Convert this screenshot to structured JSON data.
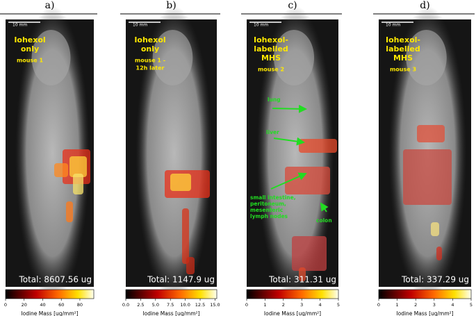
{
  "panels": [
    {
      "letter": "a)",
      "scale": "10 mm",
      "title_lines": [
        "Iohexol",
        "only"
      ],
      "subtitle_lines": [
        "mouse 1"
      ],
      "total": "Total: 8607.56 ug",
      "colorbar": {
        "label": "Iodine Mass [ug/mm²]",
        "lim": [
          0,
          95
        ],
        "ticks": [
          0,
          20,
          40,
          60,
          80
        ]
      }
    },
    {
      "letter": "b)",
      "scale": "10 mm",
      "title_lines": [
        "Iohexol",
        "only"
      ],
      "subtitle_lines": [
        "mouse 1 -",
        "12h later"
      ],
      "total": "Total: 1147.9 ug",
      "colorbar": {
        "label": "Iodine Mass [ug/mm²]",
        "lim": [
          0,
          15.3
        ],
        "ticks": [
          {
            "value": 0,
            "label": "0.0"
          },
          2.5,
          {
            "value": 5,
            "label": "5.0"
          },
          7.5,
          {
            "value": 10,
            "label": "10.0"
          },
          12.5,
          {
            "value": 15,
            "label": "15.0"
          }
        ]
      }
    },
    {
      "letter": "c)",
      "scale": "10 mm",
      "title_lines": [
        "Iohexol-",
        "labelled",
        "MHS"
      ],
      "subtitle_lines": [
        "mouse 2"
      ],
      "total": "Total: 311.31 ug",
      "colorbar": {
        "label": "Iodine Mass [ug/mm²]",
        "lim": [
          0,
          5
        ],
        "ticks": [
          0,
          1,
          2,
          3,
          4,
          5
        ]
      },
      "annotations": [
        {
          "lines": [
            "lung"
          ]
        },
        {
          "lines": [
            "liver"
          ]
        },
        {
          "lines": [
            "small intestine,",
            "peritoneum,",
            "mesenteric",
            "lymph nodes"
          ]
        },
        {
          "lines": [
            "colon"
          ]
        }
      ]
    },
    {
      "letter": "d)",
      "scale": "10 mm",
      "title_lines": [
        "Iohexol-",
        "labelled",
        "MHS"
      ],
      "subtitle_lines": [
        "mouse 3"
      ],
      "total": "Total: 337.29 ug",
      "colorbar": {
        "label": "Iodine Mass [ug/mm²]",
        "lim": [
          0,
          5
        ],
        "ticks": [
          0,
          1,
          2,
          3,
          4,
          5
        ]
      }
    }
  ]
}
